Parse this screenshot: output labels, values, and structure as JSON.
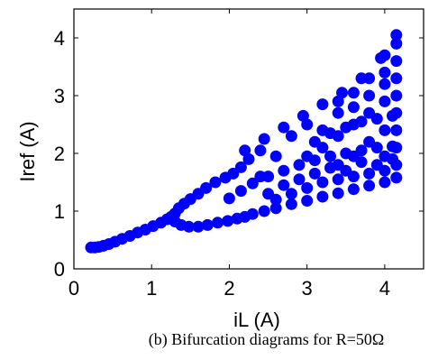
{
  "chart_data": {
    "type": "scatter",
    "title": "",
    "xlabel": "iL (A)",
    "ylabel": "Iref (A)",
    "xlim": [
      0,
      4.5
    ],
    "ylim": [
      0,
      4.5
    ],
    "xticks": [
      0,
      1,
      2,
      3,
      4
    ],
    "yticks": [
      0,
      1,
      2,
      3,
      4
    ],
    "grid": false,
    "marker_color": "#0000ff",
    "series": [
      {
        "values": [
          [
            0.22,
            0.37
          ],
          [
            0.27,
            0.37
          ],
          [
            0.32,
            0.38
          ],
          [
            0.38,
            0.4
          ],
          [
            0.45,
            0.43
          ],
          [
            0.53,
            0.47
          ],
          [
            0.62,
            0.52
          ],
          [
            0.72,
            0.57
          ],
          [
            0.82,
            0.63
          ],
          [
            0.92,
            0.68
          ],
          [
            1.02,
            0.74
          ],
          [
            1.12,
            0.8
          ],
          [
            1.2,
            0.86
          ],
          [
            1.25,
            0.9
          ],
          [
            1.3,
            0.96
          ],
          [
            1.35,
            1.05
          ],
          [
            1.42,
            1.13
          ],
          [
            1.5,
            1.21
          ],
          [
            1.6,
            1.3
          ],
          [
            1.7,
            1.4
          ],
          [
            1.82,
            1.5
          ],
          [
            1.95,
            1.58
          ],
          [
            2.05,
            1.65
          ],
          [
            2.15,
            1.76
          ],
          [
            2.25,
            1.9
          ],
          [
            2.4,
            2.05
          ],
          [
            1.3,
            0.82
          ],
          [
            1.38,
            0.76
          ],
          [
            1.48,
            0.73
          ],
          [
            1.6,
            0.73
          ],
          [
            1.72,
            0.76
          ],
          [
            1.85,
            0.8
          ],
          [
            1.98,
            0.83
          ],
          [
            2.1,
            0.87
          ],
          [
            2.2,
            0.9
          ],
          [
            2.3,
            0.95
          ],
          [
            2.45,
            1.0
          ],
          [
            2.6,
            1.05
          ],
          [
            2.8,
            1.12
          ],
          [
            3.0,
            1.18
          ],
          [
            3.2,
            1.25
          ],
          [
            3.4,
            1.31
          ],
          [
            3.6,
            1.38
          ],
          [
            3.8,
            1.44
          ],
          [
            4.0,
            1.5
          ],
          [
            4.15,
            1.58
          ],
          [
            2.0,
            1.22
          ],
          [
            2.15,
            1.35
          ],
          [
            2.3,
            1.48
          ],
          [
            2.5,
            1.6
          ],
          [
            2.7,
            1.7
          ],
          [
            2.9,
            1.8
          ],
          [
            3.1,
            1.88
          ],
          [
            3.3,
            1.95
          ],
          [
            3.5,
            2.0
          ],
          [
            3.7,
            2.05
          ],
          [
            3.9,
            2.1
          ],
          [
            4.1,
            2.12
          ],
          [
            2.2,
            2.05
          ],
          [
            2.45,
            2.25
          ],
          [
            2.7,
            2.45
          ],
          [
            2.95,
            2.65
          ],
          [
            3.2,
            2.85
          ],
          [
            3.45,
            3.05
          ],
          [
            3.7,
            3.3
          ],
          [
            3.95,
            3.65
          ],
          [
            4.15,
            4.05
          ],
          [
            2.4,
            1.6
          ],
          [
            2.6,
            1.95
          ],
          [
            2.8,
            2.3
          ],
          [
            3.0,
            2.5
          ],
          [
            3.2,
            2.4
          ],
          [
            3.4,
            2.7
          ],
          [
            3.6,
            2.8
          ],
          [
            3.8,
            3.0
          ],
          [
            4.0,
            3.2
          ],
          [
            2.5,
            1.3
          ],
          [
            2.7,
            1.45
          ],
          [
            2.9,
            1.55
          ],
          [
            3.1,
            1.65
          ],
          [
            3.3,
            1.75
          ],
          [
            3.5,
            1.7
          ],
          [
            3.7,
            1.85
          ],
          [
            3.9,
            1.8
          ],
          [
            4.1,
            1.9
          ],
          [
            3.1,
            2.2
          ],
          [
            3.3,
            2.35
          ],
          [
            3.5,
            2.45
          ],
          [
            3.7,
            2.55
          ],
          [
            3.9,
            2.6
          ],
          [
            4.1,
            2.65
          ],
          [
            4.15,
            3.9
          ],
          [
            4.15,
            3.6
          ],
          [
            4.15,
            3.3
          ],
          [
            4.15,
            3.0
          ],
          [
            4.15,
            2.7
          ],
          [
            4.15,
            2.4
          ],
          [
            4.15,
            2.1
          ],
          [
            4.15,
            1.8
          ],
          [
            4.0,
            3.7
          ],
          [
            4.0,
            3.4
          ],
          [
            4.0,
            2.9
          ],
          [
            4.0,
            2.4
          ],
          [
            4.0,
            1.95
          ],
          [
            3.8,
            3.3
          ],
          [
            3.8,
            2.7
          ],
          [
            3.8,
            2.2
          ],
          [
            3.6,
            3.05
          ],
          [
            3.6,
            2.5
          ],
          [
            3.6,
            1.95
          ],
          [
            3.4,
            2.9
          ],
          [
            3.4,
            2.3
          ],
          [
            3.4,
            1.8
          ],
          [
            3.2,
            2.1
          ],
          [
            3.0,
            1.95
          ],
          [
            2.6,
            1.2
          ],
          [
            2.8,
            1.3
          ],
          [
            3.0,
            1.4
          ],
          [
            3.2,
            1.5
          ],
          [
            3.4,
            1.55
          ],
          [
            3.6,
            1.6
          ],
          [
            3.8,
            1.65
          ],
          [
            4.0,
            1.7
          ]
        ]
      }
    ]
  },
  "caption": {
    "text": "(b) Bifurcation diagrams for R=50Ω"
  }
}
